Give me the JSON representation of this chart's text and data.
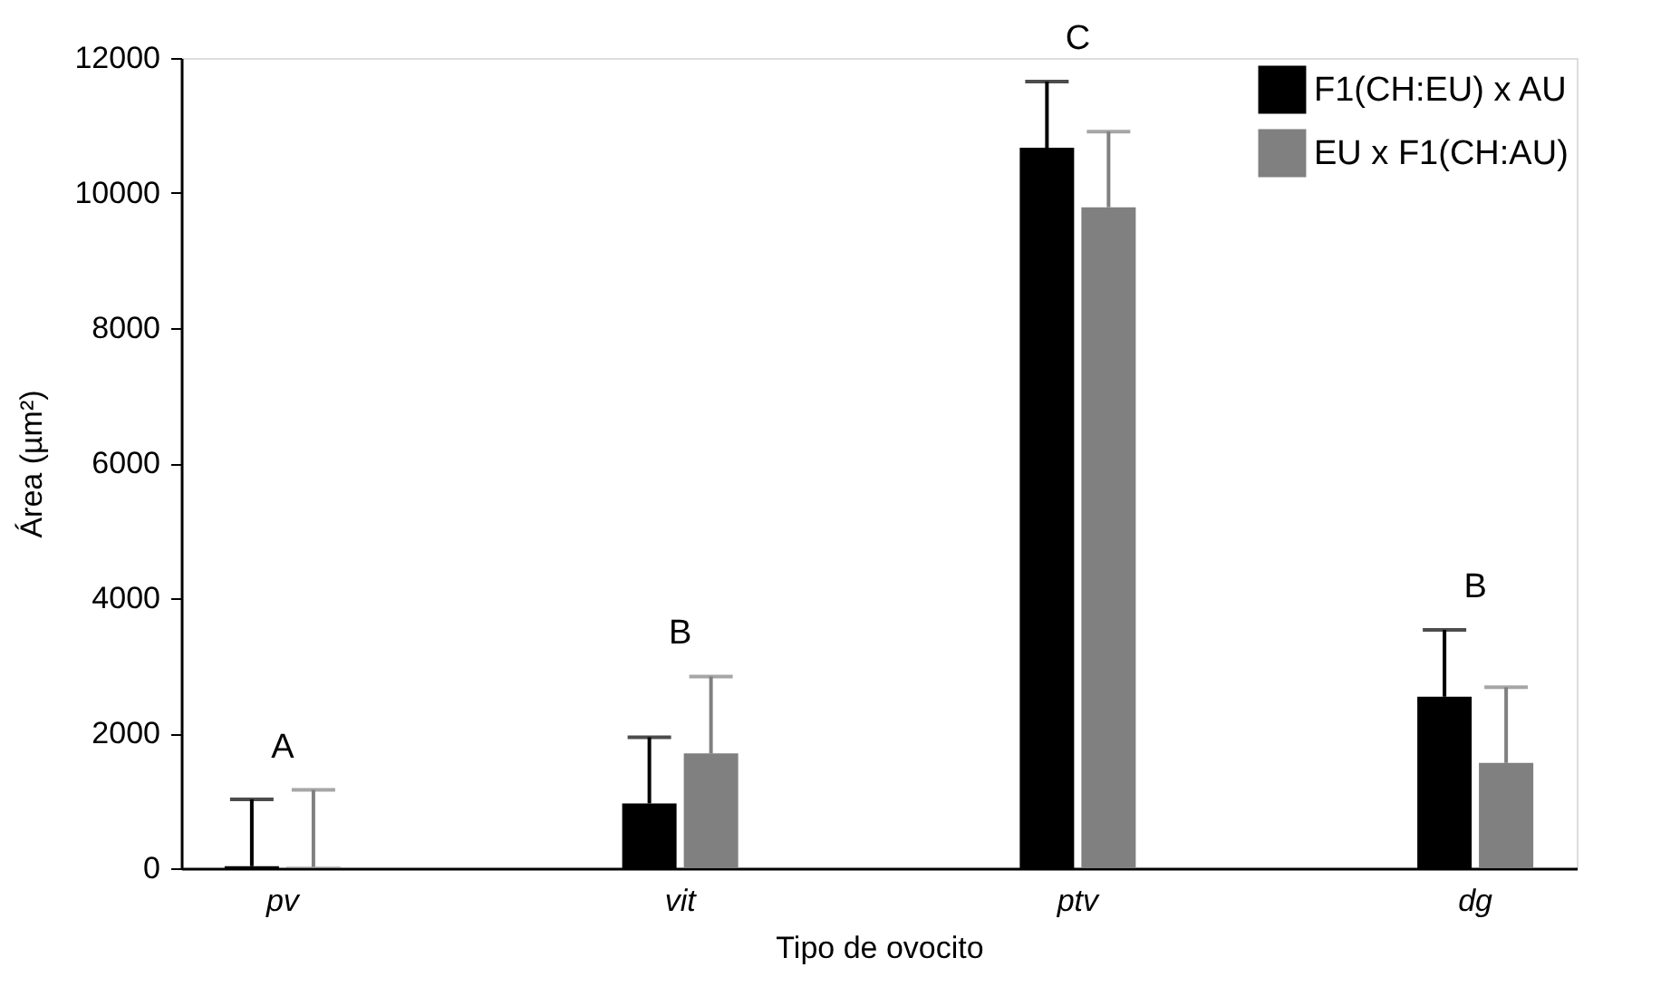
{
  "chart_data": {
    "type": "bar",
    "xlabel": "Tipo de ovocito",
    "ylabel": "Área (µm²)",
    "categories": [
      "pv",
      "vit",
      "ptv",
      "dg"
    ],
    "series": [
      {
        "name": "F1(CH:EU) x AU",
        "color": "#000000",
        "values": [
          30,
          960,
          10670,
          2540
        ],
        "errors": [
          [
            30,
            1020
          ],
          [
            960,
            1940
          ],
          [
            10670,
            11650
          ],
          [
            2540,
            3530
          ]
        ]
      },
      {
        "name": "EU x F1(CH:AU)",
        "color": "#808080",
        "values": [
          20,
          1700,
          9790,
          1560
        ],
        "errors": [
          [
            20,
            1160
          ],
          [
            1700,
            2840
          ],
          [
            9790,
            10910
          ],
          [
            1560,
            2680
          ]
        ]
      }
    ],
    "annotations": [
      "A",
      "B",
      "C",
      "B"
    ],
    "ylim": [
      0,
      12000
    ],
    "yticks": [
      0,
      2000,
      4000,
      6000,
      8000,
      10000,
      12000
    ],
    "legend": "top right",
    "grid": false
  }
}
